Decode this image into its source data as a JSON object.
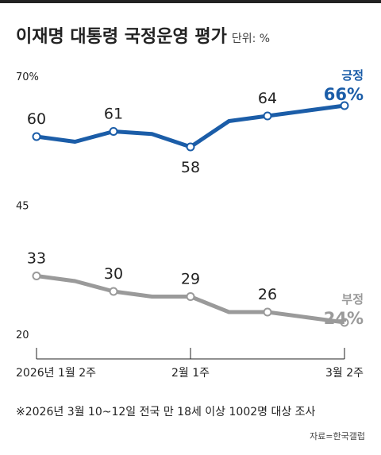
{
  "title": "이재명 대통령 국정운영 평가",
  "unit": "단위: %",
  "footnote": "※2026년 3월 10~12일 전국 만 18세 이상 1002명 대상 조사",
  "source": "자료=한국갤럽",
  "colors": {
    "positive": "#1b5da8",
    "negative": "#9a9a9a",
    "axis": "#222222",
    "text": "#222222"
  },
  "chart_data": [
    {
      "type": "line",
      "x_tick_labels": [
        "2026년 1월 2주",
        "2월 1주",
        "3월 2주"
      ],
      "ylim": [
        45,
        70
      ],
      "y_tick_labels": [
        "70%",
        "45"
      ],
      "series": [
        {
          "name": "긍정",
          "end_label": "66%",
          "values": [
            60,
            59,
            61,
            60.5,
            58,
            63,
            64,
            65,
            66
          ],
          "labels": [
            "60",
            "",
            "61",
            "",
            "58",
            "",
            "64",
            "",
            ""
          ]
        }
      ]
    },
    {
      "type": "line",
      "ylim": [
        20,
        45
      ],
      "y_tick_labels": [
        "20"
      ],
      "series": [
        {
          "name": "부정",
          "end_label": "24%",
          "values": [
            33,
            32,
            30,
            29,
            29,
            26,
            26,
            25,
            24
          ],
          "labels": [
            "33",
            "",
            "30",
            "",
            "29",
            "",
            "26",
            "",
            ""
          ]
        }
      ]
    }
  ]
}
